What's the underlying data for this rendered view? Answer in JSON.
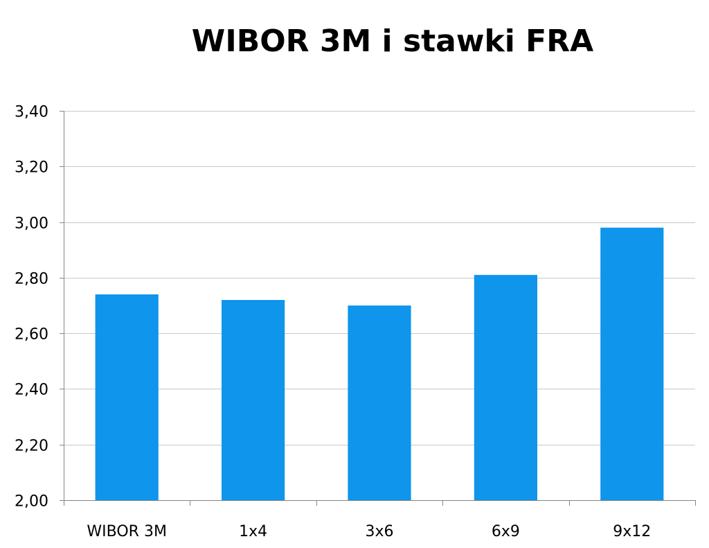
{
  "chart_data": {
    "type": "bar",
    "title": "WIBOR 3M i stawki FRA",
    "xlabel": "",
    "ylabel": "",
    "categories": [
      "WIBOR 3M",
      "1x4",
      "3x6",
      "6x9",
      "9x12"
    ],
    "values": [
      2.74,
      2.72,
      2.7,
      2.81,
      2.98
    ],
    "ylim": [
      2.0,
      3.4
    ],
    "yticks": [
      "2,00",
      "2,20",
      "2,40",
      "2,60",
      "2,80",
      "3,00",
      "3,20",
      "3,40"
    ],
    "ytick_values": [
      2.0,
      2.2,
      2.4,
      2.6,
      2.8,
      3.0,
      3.2,
      3.4
    ],
    "grid": true,
    "legend": "none",
    "bar_color": "#0F95EB"
  }
}
